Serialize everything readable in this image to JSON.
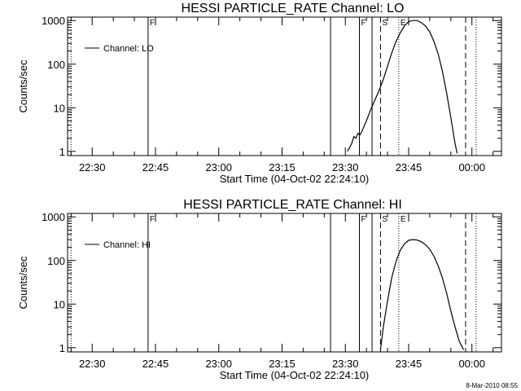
{
  "footer": {
    "timestamp": "8-Mar-2010 08:55"
  },
  "chart_data": [
    {
      "type": "line",
      "title": "HESSI PARTICLE_RATE Channel: LO",
      "xlabel": "Start Time (04-Oct-02 22:24:10)",
      "ylabel": "Counts/sec",
      "xlim": [
        "22:24:10",
        "00:07:00"
      ],
      "ylim": [
        0.8,
        1200
      ],
      "yscale": "log",
      "grid": false,
      "legend_position": "top-left",
      "x_ticks": [
        "22:30",
        "22:45",
        "23:00",
        "23:15",
        "23:30",
        "23:45",
        "00:00"
      ],
      "y_ticks": [
        "1",
        "10",
        "100",
        "1000"
      ],
      "series": [
        {
          "name": "Channel: LO",
          "x": [
            "23:30:30",
            "23:31:30",
            "23:32:00",
            "23:32:30",
            "23:33:00",
            "23:33:30",
            "23:34:00",
            "23:35:00",
            "23:36:00",
            "23:37:00",
            "23:38:00",
            "23:39:00",
            "23:40:00",
            "23:41:00",
            "23:42:00",
            "23:43:00",
            "23:44:00",
            "23:45:00",
            "23:46:00",
            "23:47:00",
            "23:48:00",
            "23:49:00",
            "23:50:00",
            "23:51:00",
            "23:52:00",
            "23:53:00",
            "23:54:00",
            "23:55:00",
            "23:55:30",
            "23:56:00",
            "23:56:30"
          ],
          "y": [
            1,
            1.5,
            2.2,
            2.0,
            2.6,
            2.4,
            3.0,
            5,
            9,
            15,
            25,
            45,
            90,
            180,
            330,
            520,
            750,
            950,
            1000,
            1000,
            900,
            750,
            550,
            330,
            170,
            70,
            22,
            6,
            3,
            1.5,
            0.9
          ]
        }
      ],
      "vertical_markers": [
        {
          "x": "22:25:00",
          "style": "dotted",
          "label": ""
        },
        {
          "x": "22:43:15",
          "style": "solid",
          "label": "F"
        },
        {
          "x": "23:26:30",
          "style": "solid",
          "label": ""
        },
        {
          "x": "23:33:20",
          "style": "solid",
          "label": "F"
        },
        {
          "x": "23:36:20",
          "style": "solid",
          "label": ""
        },
        {
          "x": "23:38:20",
          "style": "dashed",
          "label": "S"
        },
        {
          "x": "23:42:40",
          "style": "dotted",
          "label": "E"
        },
        {
          "x": "23:58:30",
          "style": "dashed",
          "label": ""
        },
        {
          "x": "00:01:00",
          "style": "dotted",
          "label": ""
        }
      ]
    },
    {
      "type": "line",
      "title": "HESSI PARTICLE_RATE Channel: HI",
      "xlabel": "Start Time (04-Oct-02 22:24:10)",
      "ylabel": "Counts/sec",
      "xlim": [
        "22:24:10",
        "00:07:00"
      ],
      "ylim": [
        0.8,
        1200
      ],
      "yscale": "log",
      "grid": false,
      "legend_position": "top-left",
      "x_ticks": [
        "22:30",
        "22:45",
        "23:00",
        "23:15",
        "23:30",
        "23:45",
        "00:00"
      ],
      "y_ticks": [
        "1",
        "10",
        "100",
        "1000"
      ],
      "series": [
        {
          "name": "Channel: HI",
          "x": [
            "23:38:20",
            "23:39:00",
            "23:40:00",
            "23:41:00",
            "23:42:00",
            "23:43:00",
            "23:44:00",
            "23:45:00",
            "23:46:00",
            "23:47:00",
            "23:48:00",
            "23:49:00",
            "23:50:00",
            "23:51:00",
            "23:52:00",
            "23:53:00",
            "23:54:00",
            "23:55:00",
            "23:56:00",
            "23:57:00",
            "23:58:00"
          ],
          "y": [
            0.9,
            3,
            12,
            40,
            95,
            170,
            240,
            290,
            300,
            295,
            270,
            230,
            180,
            125,
            75,
            40,
            18,
            7,
            3,
            1.4,
            0.9
          ]
        }
      ],
      "vertical_markers": [
        {
          "x": "22:25:00",
          "style": "dotted",
          "label": ""
        },
        {
          "x": "22:43:15",
          "style": "solid",
          "label": "F"
        },
        {
          "x": "23:26:30",
          "style": "solid",
          "label": ""
        },
        {
          "x": "23:33:20",
          "style": "solid",
          "label": "F"
        },
        {
          "x": "23:36:20",
          "style": "solid",
          "label": ""
        },
        {
          "x": "23:38:20",
          "style": "dashed",
          "label": "S"
        },
        {
          "x": "23:42:40",
          "style": "dotted",
          "label": "E"
        },
        {
          "x": "23:58:30",
          "style": "dashed",
          "label": ""
        },
        {
          "x": "00:01:00",
          "style": "dotted",
          "label": ""
        }
      ]
    }
  ]
}
